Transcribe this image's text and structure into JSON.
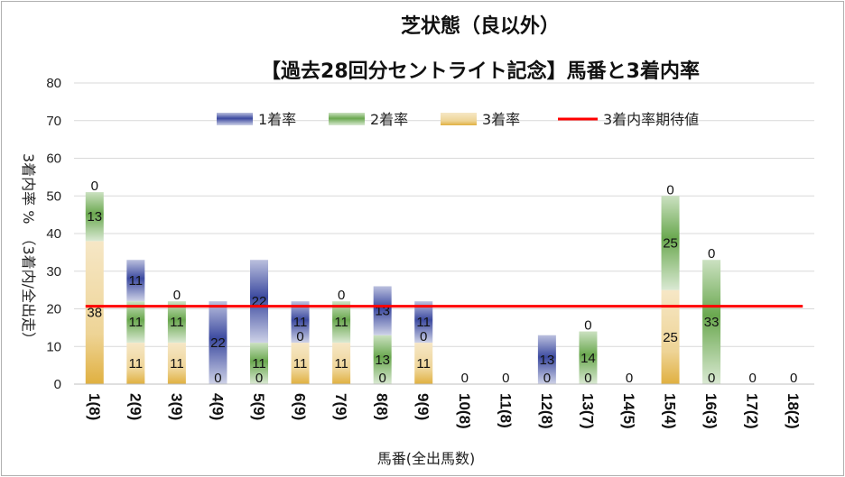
{
  "chart_data": {
    "type": "bar",
    "title": "芝状態（良以外）",
    "subtitle": "【過去28回分セントライト記念】馬番と3着内率",
    "xlabel": "馬番(全出馬数)",
    "ylabel": "3着内率 %　（3着内/全出走）",
    "ylim": [
      0,
      80
    ],
    "yticks": [
      "0",
      "10",
      "20",
      "30",
      "40",
      "50",
      "60",
      "70",
      "80"
    ],
    "grid": true,
    "legend_position": "top",
    "categories": [
      "1(8)",
      "2(9)",
      "3(9)",
      "4(9)",
      "5(9)",
      "6(9)",
      "7(9)",
      "8(8)",
      "9(9)",
      "10(8)",
      "11(8)",
      "12(8)",
      "13(7)",
      "14(5)",
      "15(4)",
      "16(3)",
      "17(2)",
      "18(2)"
    ],
    "series": [
      {
        "name": "3着率",
        "color": "#e0b040",
        "values": [
          38,
          11,
          11,
          0,
          0,
          11,
          11,
          0,
          11,
          0,
          0,
          0,
          0,
          0,
          25,
          0,
          0,
          0
        ],
        "labels": [
          "38",
          "11",
          "11",
          "0",
          "0",
          "11",
          "11",
          "0",
          "11",
          "",
          "",
          "0",
          "0",
          "",
          "25",
          "0",
          "",
          ""
        ]
      },
      {
        "name": "2着率",
        "color": "#6aa84f",
        "values": [
          13,
          11,
          11,
          0,
          11,
          0,
          11,
          13,
          0,
          0,
          0,
          0,
          14,
          0,
          25,
          33,
          0,
          0
        ],
        "labels": [
          "13",
          "11",
          "11",
          "",
          "11",
          "0",
          "11",
          "13",
          "0",
          "",
          "",
          "",
          "14",
          "",
          "25",
          "33",
          "",
          ""
        ]
      },
      {
        "name": "1着率",
        "color": "#3c4aa0",
        "values": [
          0,
          11,
          0,
          22,
          22,
          11,
          0,
          13,
          11,
          0,
          0,
          13,
          0,
          0,
          0,
          0,
          0,
          0
        ],
        "labels": [
          "0",
          "11",
          "0",
          "22",
          "22",
          "11",
          "0",
          "13",
          "11",
          "",
          "",
          "13",
          "0",
          "",
          "0",
          "0",
          "",
          ""
        ]
      },
      {
        "name": "3着内率期待値",
        "color": "#ff0000",
        "type": "line",
        "value": 20.7
      }
    ],
    "total_labels": [
      "",
      "",
      "",
      "",
      "",
      "",
      "",
      "",
      "",
      "0",
      "0",
      "",
      "",
      "0",
      "",
      "",
      "0",
      "0"
    ]
  }
}
